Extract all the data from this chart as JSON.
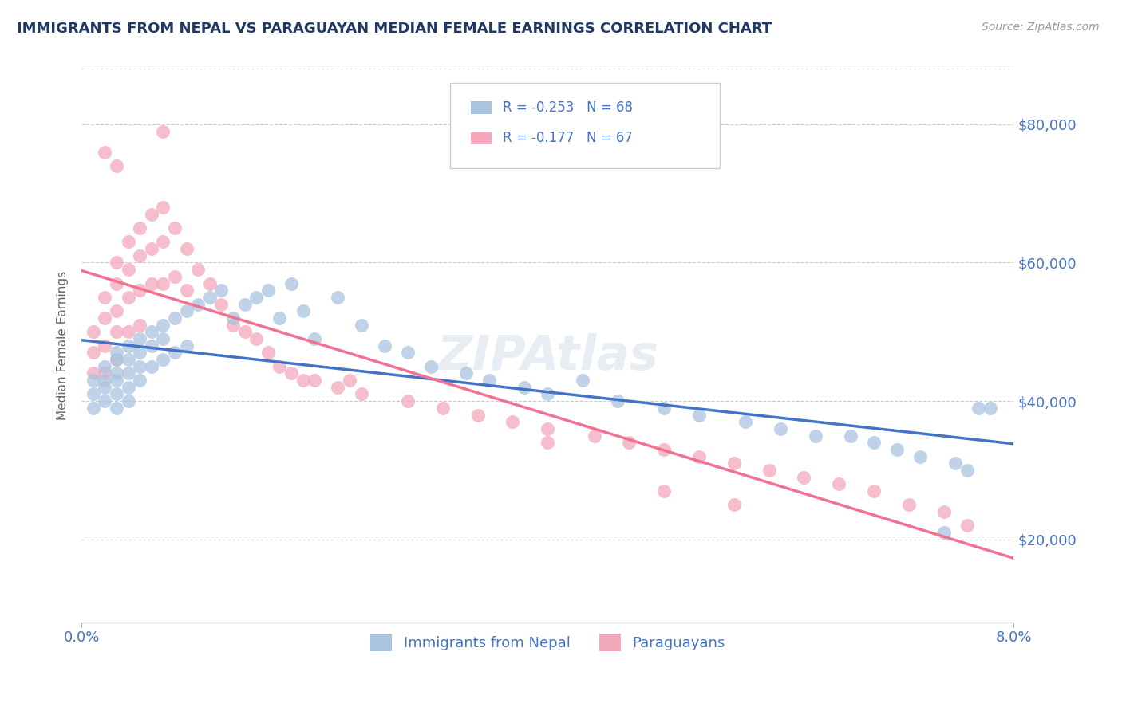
{
  "title": "IMMIGRANTS FROM NEPAL VS PARAGUAYAN MEDIAN FEMALE EARNINGS CORRELATION CHART",
  "source": "Source: ZipAtlas.com",
  "ylabel": "Median Female Earnings",
  "xmin": 0.0,
  "xmax": 0.08,
  "ymin": 8000,
  "ymax": 88000,
  "yticks": [
    20000,
    40000,
    60000,
    80000
  ],
  "ytick_labels": [
    "$20,000",
    "$40,000",
    "$60,000",
    "$80,000"
  ],
  "watermark": "ZIPAtlas",
  "legend_r1": "R = -0.253",
  "legend_n1": "N = 68",
  "legend_r2": "R = -0.177",
  "legend_n2": "N = 67",
  "color_nepal": "#aac4e0",
  "color_paraguay": "#f4a8bc",
  "line_color_nepal": "#4472c4",
  "line_color_paraguay": "#f47090",
  "title_color": "#1f3864",
  "axis_color": "#4472c4",
  "nepal_x": [
    0.001,
    0.001,
    0.001,
    0.002,
    0.002,
    0.002,
    0.002,
    0.003,
    0.003,
    0.003,
    0.003,
    0.003,
    0.003,
    0.004,
    0.004,
    0.004,
    0.004,
    0.004,
    0.005,
    0.005,
    0.005,
    0.005,
    0.006,
    0.006,
    0.006,
    0.007,
    0.007,
    0.007,
    0.008,
    0.008,
    0.009,
    0.009,
    0.01,
    0.011,
    0.012,
    0.013,
    0.014,
    0.015,
    0.016,
    0.017,
    0.018,
    0.019,
    0.02,
    0.022,
    0.024,
    0.026,
    0.028,
    0.03,
    0.033,
    0.035,
    0.038,
    0.04,
    0.043,
    0.046,
    0.05,
    0.053,
    0.057,
    0.06,
    0.063,
    0.066,
    0.068,
    0.07,
    0.072,
    0.074,
    0.075,
    0.076,
    0.077,
    0.078
  ],
  "nepal_y": [
    43000,
    41000,
    39000,
    45000,
    43000,
    42000,
    40000,
    47000,
    46000,
    44000,
    43000,
    41000,
    39000,
    48000,
    46000,
    44000,
    42000,
    40000,
    49000,
    47000,
    45000,
    43000,
    50000,
    48000,
    45000,
    51000,
    49000,
    46000,
    52000,
    47000,
    53000,
    48000,
    54000,
    55000,
    56000,
    52000,
    54000,
    55000,
    56000,
    52000,
    57000,
    53000,
    49000,
    55000,
    51000,
    48000,
    47000,
    45000,
    44000,
    43000,
    42000,
    41000,
    43000,
    40000,
    39000,
    38000,
    37000,
    36000,
    35000,
    35000,
    34000,
    33000,
    32000,
    21000,
    31000,
    30000,
    39000,
    39000
  ],
  "paraguay_x": [
    0.001,
    0.001,
    0.001,
    0.002,
    0.002,
    0.002,
    0.002,
    0.003,
    0.003,
    0.003,
    0.003,
    0.003,
    0.004,
    0.004,
    0.004,
    0.004,
    0.005,
    0.005,
    0.005,
    0.005,
    0.006,
    0.006,
    0.006,
    0.007,
    0.007,
    0.007,
    0.008,
    0.008,
    0.009,
    0.009,
    0.01,
    0.011,
    0.012,
    0.013,
    0.014,
    0.015,
    0.016,
    0.017,
    0.018,
    0.019,
    0.02,
    0.022,
    0.024,
    0.028,
    0.031,
    0.034,
    0.037,
    0.04,
    0.044,
    0.047,
    0.05,
    0.053,
    0.056,
    0.059,
    0.062,
    0.065,
    0.068,
    0.071,
    0.074,
    0.076,
    0.05,
    0.056,
    0.023,
    0.04,
    0.007,
    0.002,
    0.003
  ],
  "paraguay_y": [
    50000,
    47000,
    44000,
    55000,
    52000,
    48000,
    44000,
    60000,
    57000,
    53000,
    50000,
    46000,
    63000,
    59000,
    55000,
    50000,
    65000,
    61000,
    56000,
    51000,
    67000,
    62000,
    57000,
    68000,
    63000,
    57000,
    65000,
    58000,
    62000,
    56000,
    59000,
    57000,
    54000,
    51000,
    50000,
    49000,
    47000,
    45000,
    44000,
    43000,
    43000,
    42000,
    41000,
    40000,
    39000,
    38000,
    37000,
    36000,
    35000,
    34000,
    33000,
    32000,
    31000,
    30000,
    29000,
    28000,
    27000,
    25000,
    24000,
    22000,
    27000,
    25000,
    43000,
    34000,
    79000,
    76000,
    74000
  ]
}
